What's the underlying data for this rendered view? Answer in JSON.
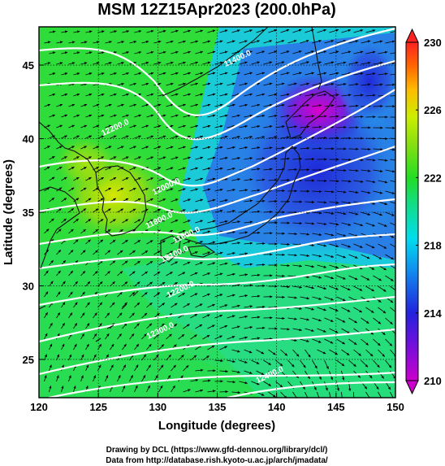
{
  "chart_data": {
    "type": "heatmap",
    "title": "MSM 12Z15Apr2023 (200.0hPa)",
    "xlabel": "Longitude (degrees)",
    "ylabel": "Latitude  (degrees)",
    "xlim": [
      120,
      150
    ],
    "ylim": [
      22.4,
      47.6
    ],
    "x_ticks": [
      120,
      125,
      130,
      135,
      140,
      145,
      150
    ],
    "y_ticks": [
      25,
      30,
      35,
      40,
      45
    ],
    "x_tick_labels": [
      "120",
      "125",
      "130",
      "135",
      "140",
      "145",
      "150"
    ],
    "y_tick_labels": [
      "25",
      "30",
      "35",
      "40",
      "45"
    ],
    "grid": true,
    "colorbar": {
      "min": 210,
      "max": 230,
      "ticks": [
        210,
        214,
        218,
        222,
        226,
        230
      ],
      "tick_labels": [
        "210",
        "214",
        "218",
        "222",
        "226",
        "230"
      ],
      "colors": [
        "#cc00cc",
        "#2222dd",
        "#00ccee",
        "#22dd22",
        "#ccee00",
        "#ff8800",
        "#ff2222"
      ]
    },
    "contour_labels": [
      {
        "text": "12200.0",
        "lon": 126.5,
        "lat": 40.6
      },
      {
        "text": "12000.0",
        "lon": 130.8,
        "lat": 36.6
      },
      {
        "text": "11800.0",
        "lon": 130.2,
        "lat": 34.3
      },
      {
        "text": "11600.0",
        "lon": 132.5,
        "lat": 33.3
      },
      {
        "text": "12100.0",
        "lon": 131.5,
        "lat": 32.0
      },
      {
        "text": "12200.0",
        "lon": 132.0,
        "lat": 29.6
      },
      {
        "text": "12300.0",
        "lon": 130.3,
        "lat": 26.8
      },
      {
        "text": "12400.0",
        "lon": 139.5,
        "lat": 23.8
      },
      {
        "text": "11400.0",
        "lon": 136.8,
        "lat": 45.3
      }
    ],
    "field_description": "temperature (K) shaded, geopotential height contours (white), wind vectors (black)"
  },
  "credits": {
    "line1": "Drawing by DCL (https://www.gfd-dennou.org/library/dcl/)",
    "line2": "Data from http://database.rish.kyoto-u.ac.jp/arch/jmadata/"
  }
}
